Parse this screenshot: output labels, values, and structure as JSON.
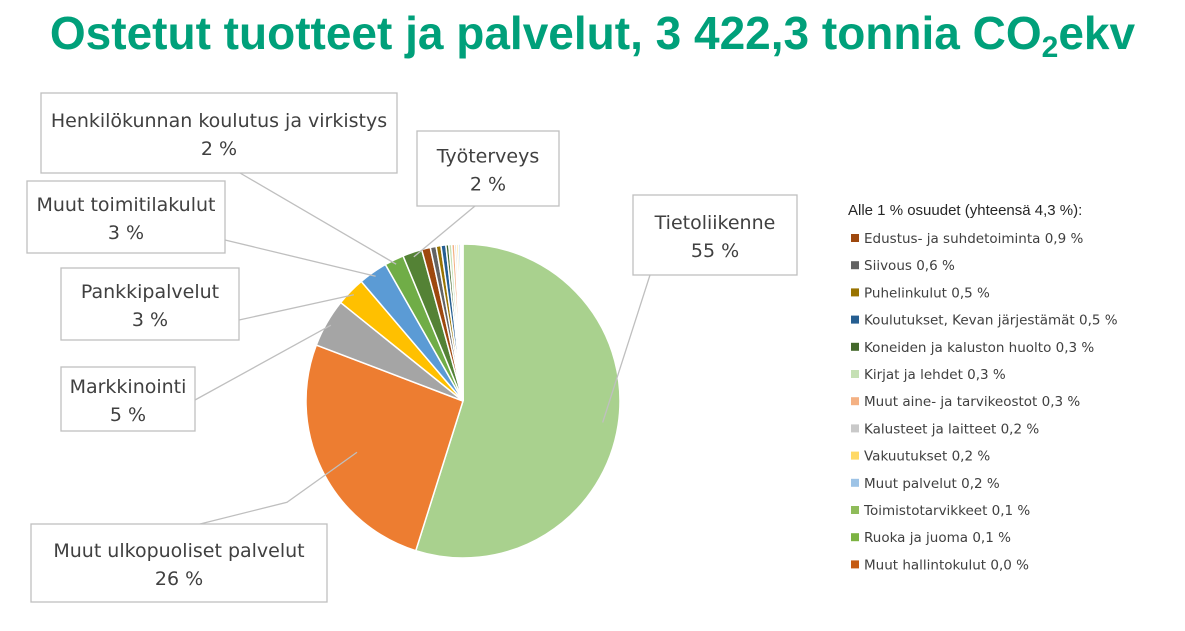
{
  "title": {
    "main": "Ostetut tuotteet ja palvelut, 3 422,3 tonnia CO",
    "sub": "2",
    "suffix": "ekv"
  },
  "chart_data": {
    "type": "pie",
    "slices": [
      {
        "label": "Tietoliikenne",
        "pct_label": "55 %",
        "value": 55,
        "color": "#a9d18e"
      },
      {
        "label": "Muut ulkopuoliset palvelut",
        "pct_label": "26 %",
        "value": 26,
        "color": "#ed7d31"
      },
      {
        "label": "Markkinointi",
        "pct_label": "5 %",
        "value": 5,
        "color": "#a5a5a5"
      },
      {
        "label": "Pankkipalvelut",
        "pct_label": "3 %",
        "value": 3,
        "color": "#ffc000"
      },
      {
        "label": "Muut toimitilakulut",
        "pct_label": "3 %",
        "value": 3,
        "color": "#5b9bd5"
      },
      {
        "label": "Henkilökunnan koulutus ja virkistys",
        "pct_label": "2 %",
        "value": 2,
        "color": "#70ad47"
      },
      {
        "label": "Työterveys",
        "pct_label": "2 %",
        "value": 2,
        "color": "#548235"
      },
      {
        "label": "Edustus- ja suhdetoiminta 0,9 %",
        "value": 0.9,
        "color": "#9e480e"
      },
      {
        "label": "Siivous 0,6 %",
        "value": 0.6,
        "color": "#636363"
      },
      {
        "label": "Puhelinkulut 0,5 %",
        "value": 0.5,
        "color": "#997300"
      },
      {
        "label": "Koulutukset, Kevan järjestämät 0,5 %",
        "value": 0.5,
        "color": "#255e91"
      },
      {
        "label": "Koneiden ja kaluston huolto 0,3 %",
        "value": 0.3,
        "color": "#43682b"
      },
      {
        "label": "Kirjat ja lehdet 0,3 %",
        "value": 0.3,
        "color": "#c5e0b4"
      },
      {
        "label": "Muut aine- ja tarvikeostot 0,3 %",
        "value": 0.3,
        "color": "#f4b183"
      },
      {
        "label": "Kalusteet ja laitteet 0,2 %",
        "value": 0.2,
        "color": "#c9c9c9"
      },
      {
        "label": "Vakuutukset 0,2 %",
        "value": 0.2,
        "color": "#ffd966"
      },
      {
        "label": "Muut palvelut 0,2 %",
        "value": 0.2,
        "color": "#9dc3e6"
      },
      {
        "label": "Toimistotarvikkeet 0,1 %",
        "value": 0.1,
        "color": "#8fbc5a"
      },
      {
        "label": "Ruoka ja juoma 0,1 %",
        "value": 0.1,
        "color": "#7cb342"
      },
      {
        "label": "Muut hallintokulut 0,0 %",
        "value": 0.05,
        "color": "#c55a11"
      }
    ],
    "legend_title": "Alle 1 % osuudet (yhteensä 4,3 %):"
  }
}
